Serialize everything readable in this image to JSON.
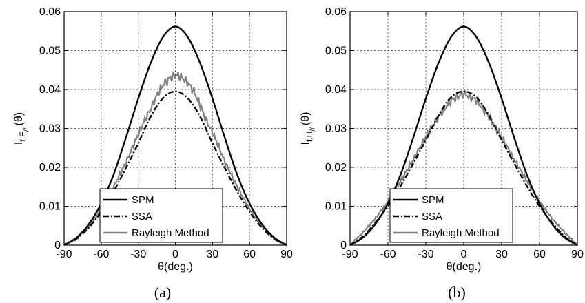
{
  "chart_data": [
    {
      "type": "line",
      "caption": "(a)",
      "xlabel": "θ(deg.)",
      "ylabel": {
        "main": "I",
        "sub": "f,E",
        "subsub": "//",
        "suffix": "(θ)"
      },
      "xlim": [
        -90,
        90
      ],
      "ylim": [
        0,
        0.06
      ],
      "xticks": [
        -90,
        -60,
        -30,
        0,
        30,
        60,
        90
      ],
      "yticks": [
        0,
        0.01,
        0.02,
        0.03,
        0.04,
        0.05,
        0.06
      ],
      "ytick_labels": [
        "0",
        "0.01",
        "0.02",
        "0.03",
        "0.04",
        "0.05",
        "0.06"
      ],
      "grid": true,
      "legend_position": "bottom-center",
      "series": [
        {
          "name": "SPM",
          "style": "solid",
          "color": "#000000",
          "x": [
            -90,
            -80,
            -70,
            -60,
            -50,
            -40,
            -30,
            -20,
            -10,
            0,
            10,
            20,
            30,
            40,
            50,
            60,
            70,
            80,
            90
          ],
          "y": [
            0,
            0.0019,
            0.0054,
            0.0107,
            0.0181,
            0.0276,
            0.0377,
            0.0468,
            0.0535,
            0.0562,
            0.0535,
            0.0468,
            0.0377,
            0.0276,
            0.0181,
            0.0107,
            0.0054,
            0.0019,
            0
          ]
        },
        {
          "name": "SSA",
          "style": "dashdot",
          "color": "#000000",
          "x": [
            -90,
            -80,
            -70,
            -60,
            -50,
            -40,
            -30,
            -20,
            -10,
            0,
            10,
            20,
            30,
            40,
            50,
            60,
            70,
            80,
            90
          ],
          "y": [
            0,
            0.0016,
            0.0045,
            0.0086,
            0.0138,
            0.0198,
            0.0262,
            0.033,
            0.0378,
            0.0395,
            0.0378,
            0.033,
            0.0262,
            0.0198,
            0.0138,
            0.0086,
            0.0045,
            0.0016,
            0
          ]
        },
        {
          "name": "Rayleigh Method",
          "style": "solid",
          "color": "#808080",
          "x": [
            -90,
            -80,
            -70,
            -60,
            -50,
            -40,
            -30,
            -25,
            -20,
            -15,
            -10,
            -5,
            0,
            5,
            10,
            15,
            20,
            25,
            30,
            40,
            50,
            60,
            70,
            80,
            90
          ],
          "y": [
            0,
            0.0017,
            0.0048,
            0.0092,
            0.015,
            0.0212,
            0.0285,
            0.032,
            0.035,
            0.0385,
            0.0412,
            0.0428,
            0.0438,
            0.0432,
            0.0418,
            0.0395,
            0.036,
            0.032,
            0.029,
            0.0215,
            0.015,
            0.0093,
            0.0048,
            0.0017,
            0
          ]
        }
      ]
    },
    {
      "type": "line",
      "caption": "(b)",
      "xlabel": "θ(deg.)",
      "ylabel": {
        "main": "I",
        "sub": "f,H",
        "subsub": "//",
        "suffix": "(θ)"
      },
      "xlim": [
        -90,
        90
      ],
      "ylim": [
        0,
        0.06
      ],
      "xticks": [
        -90,
        -60,
        -30,
        0,
        30,
        60,
        90
      ],
      "yticks": [
        0,
        0.01,
        0.02,
        0.03,
        0.04,
        0.05,
        0.06
      ],
      "ytick_labels": [
        "0",
        "0.01",
        "0.02",
        "0.03",
        "0.04",
        "0.05",
        "0.06"
      ],
      "grid": true,
      "legend_position": "bottom-center",
      "series": [
        {
          "name": "SPM",
          "style": "solid",
          "color": "#000000",
          "x": [
            -90,
            -80,
            -70,
            -60,
            -50,
            -40,
            -30,
            -20,
            -10,
            0,
            10,
            20,
            30,
            40,
            50,
            60,
            70,
            80,
            90
          ],
          "y": [
            0,
            0.0019,
            0.0054,
            0.0107,
            0.0181,
            0.0276,
            0.0377,
            0.0468,
            0.0535,
            0.0562,
            0.0535,
            0.0468,
            0.0377,
            0.0276,
            0.0181,
            0.0107,
            0.0054,
            0.0019,
            0
          ]
        },
        {
          "name": "SSA",
          "style": "dashdot",
          "color": "#000000",
          "x": [
            -90,
            -80,
            -70,
            -60,
            -50,
            -40,
            -30,
            -20,
            -10,
            0,
            10,
            20,
            30,
            40,
            50,
            60,
            70,
            80,
            90
          ],
          "y": [
            0,
            0.0022,
            0.0058,
            0.01,
            0.0152,
            0.021,
            0.027,
            0.0333,
            0.038,
            0.0395,
            0.038,
            0.0333,
            0.027,
            0.021,
            0.0152,
            0.01,
            0.0058,
            0.0022,
            0
          ]
        },
        {
          "name": "Rayleigh Method",
          "style": "solid",
          "color": "#808080",
          "x": [
            -90,
            -80,
            -70,
            -60,
            -50,
            -40,
            -30,
            -20,
            -10,
            0,
            10,
            20,
            30,
            40,
            50,
            60,
            70,
            80,
            90
          ],
          "y": [
            0,
            0.0032,
            0.0068,
            0.0112,
            0.0165,
            0.022,
            0.0278,
            0.033,
            0.0372,
            0.039,
            0.0372,
            0.033,
            0.0278,
            0.022,
            0.0165,
            0.0112,
            0.0068,
            0.0032,
            0
          ]
        }
      ]
    }
  ]
}
